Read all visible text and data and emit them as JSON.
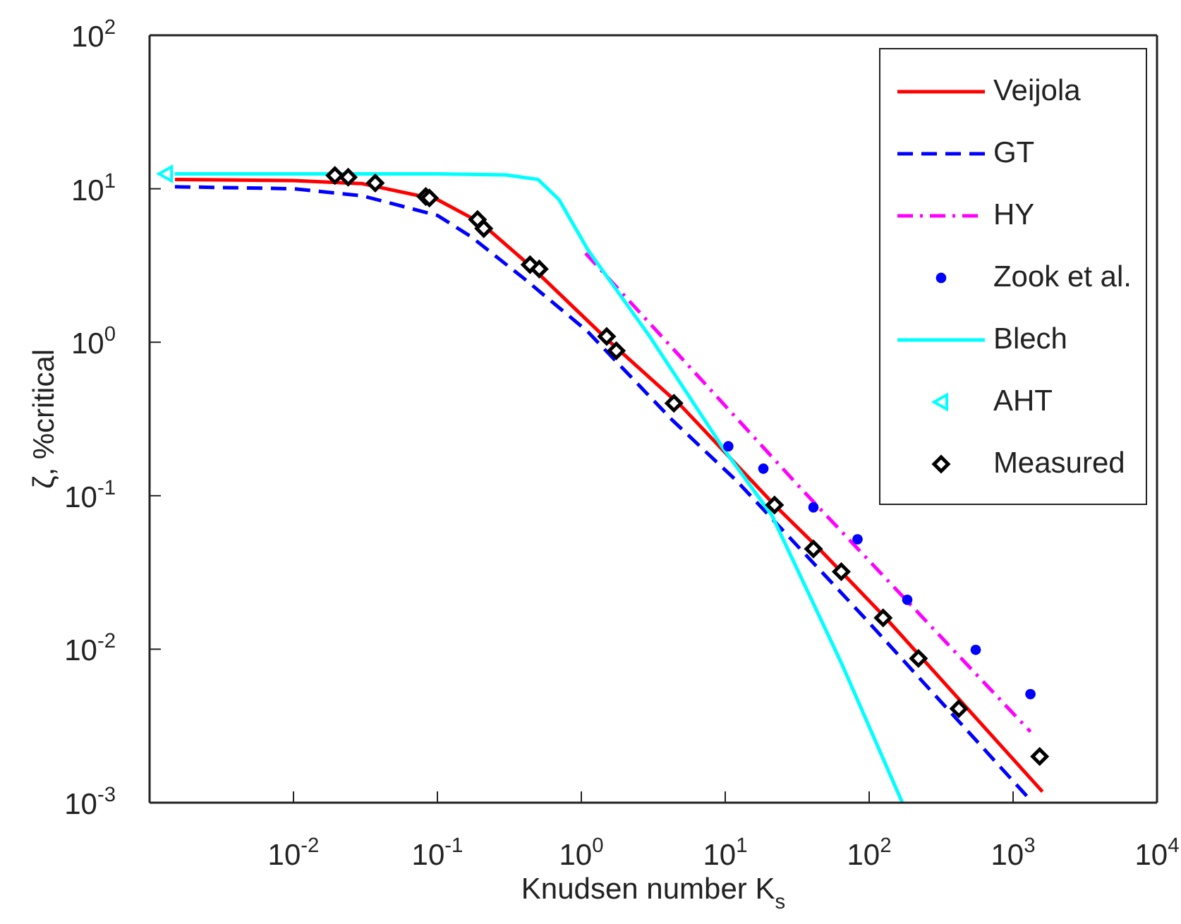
{
  "chart_data": {
    "type": "line",
    "xlabel": "Knudsen number K$_{s}$",
    "ylabel": "ζ, %critical",
    "log": "xy",
    "xlim": [
      0.001,
      10000
    ],
    "ylim": [
      0.001,
      100
    ],
    "xticks": [
      {
        "value": 0.001,
        "label": null
      },
      {
        "value": 0.01,
        "label": "10$^{-2}$"
      },
      {
        "value": 0.1,
        "label": "10$^{-1}$"
      },
      {
        "value": 1,
        "label": "10$^{0}$"
      },
      {
        "value": 10,
        "label": "10$^{1}$"
      },
      {
        "value": 100,
        "label": "10$^{2}$"
      },
      {
        "value": 1000,
        "label": "10$^{3}$"
      },
      {
        "value": 10000,
        "label": "10$^{4}$"
      }
    ],
    "yticks": [
      {
        "value": 0.001,
        "label": "10$^{-3}$"
      },
      {
        "value": 0.01,
        "label": "10$^{-2}$"
      },
      {
        "value": 0.1,
        "label": "10$^{-1}$"
      },
      {
        "value": 1,
        "label": "10$^{0}$"
      },
      {
        "value": 10,
        "label": "10$^{1}$"
      },
      {
        "value": 100,
        "label": "10$^{2}$"
      }
    ],
    "legend": "top right",
    "series": [
      {
        "name": "Veijola",
        "color": "#ff0000",
        "line_style": "solid",
        "marker": "none",
        "x": [
          0.0015,
          0.01,
          0.03,
          0.1,
          0.2,
          0.45,
          1.5,
          5,
          22,
          45,
          130,
          1600
        ],
        "values": [
          11.5,
          11.3,
          10.8,
          8.5,
          6,
          3.1,
          1.05,
          0.38,
          0.087,
          0.045,
          0.016,
          0.00118
        ]
      },
      {
        "name": "GT",
        "color": "#0000ff",
        "line_style": "dashed",
        "marker": "none",
        "x": [
          0.0015,
          0.01,
          0.03,
          0.1,
          0.17,
          0.4,
          1.1,
          4.3,
          12,
          93,
          1250
        ],
        "values": [
          10.3,
          10,
          9,
          6.7,
          4.9,
          2.6,
          1.18,
          0.31,
          0.125,
          0.016,
          0.0011
        ]
      },
      {
        "name": "HY",
        "color": "#ff00ff",
        "line_style": "dashdot",
        "marker": "none",
        "x": [
          1.07,
          34,
          1320
        ],
        "values": [
          3.8,
          0.11,
          0.0029
        ]
      },
      {
        "name": "Zook et al.",
        "type": "scatter",
        "color": "#0000ff",
        "marker": "circle",
        "x": [
          10.5,
          18.4,
          41,
          83,
          184,
          550,
          1320
        ],
        "values": [
          0.21,
          0.15,
          0.084,
          0.052,
          0.021,
          0.0099,
          0.0051
        ]
      },
      {
        "name": "Blech",
        "color": "#00ffff",
        "line_style": "solid",
        "marker": "none",
        "x": [
          0.0015,
          0.1,
          0.3,
          0.5,
          0.7,
          1.12,
          2.95,
          9.8,
          21,
          65,
          170
        ],
        "values": [
          12.5,
          12.5,
          12.3,
          11.5,
          8.5,
          3.95,
          1.11,
          0.2,
          0.075,
          0.0079,
          0.001
        ]
      },
      {
        "name": "AHT",
        "type": "scatter",
        "color": "#00ffff",
        "marker": "triangle",
        "x": [
          0.0013
        ],
        "values": [
          12.5
        ]
      },
      {
        "name": "Measured",
        "type": "scatter",
        "color": "#000000",
        "marker": "diamond",
        "x": [
          0.0194,
          0.024,
          0.037,
          0.083,
          0.088,
          0.19,
          0.21,
          0.44,
          0.51,
          1.5,
          1.75,
          4.4,
          22,
          41,
          64,
          125,
          220,
          420,
          1530
        ],
        "values": [
          12.2,
          11.9,
          10.9,
          8.9,
          8.7,
          6.3,
          5.5,
          3.2,
          3,
          1.09,
          0.88,
          0.4,
          0.087,
          0.045,
          0.032,
          0.016,
          0.0087,
          0.0041,
          0.002
        ]
      }
    ]
  }
}
